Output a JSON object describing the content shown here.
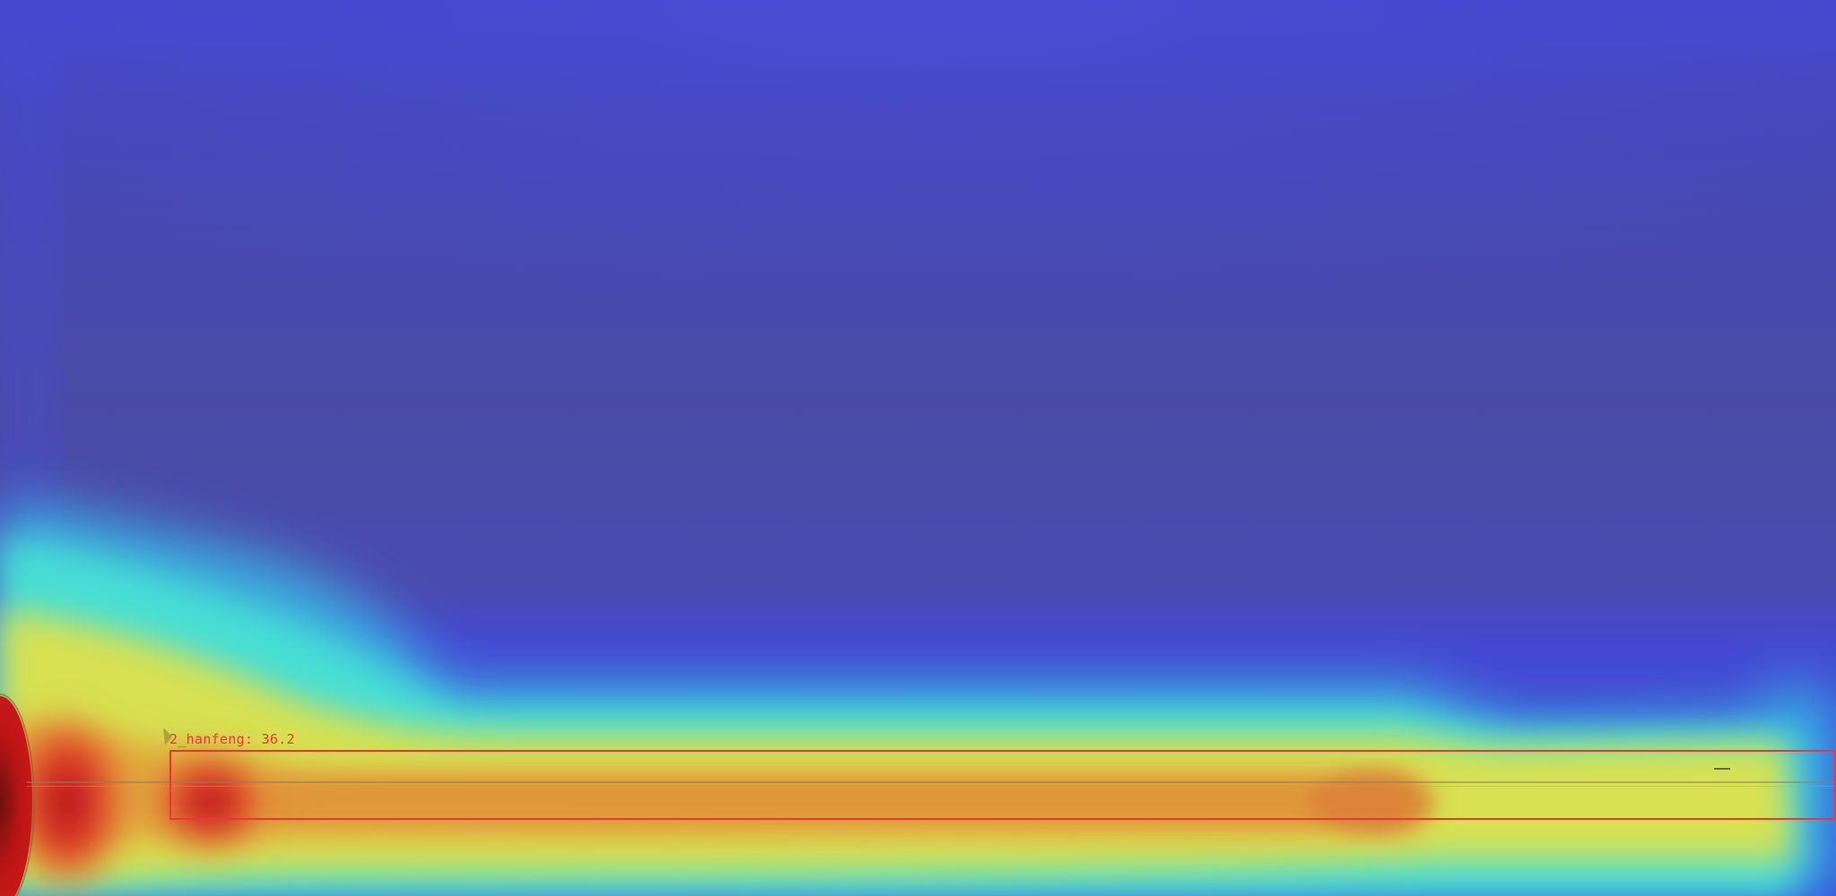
{
  "detection": {
    "label": "2_hanfeng: 36.2",
    "class_name": "2_hanfeng",
    "score": 36.2,
    "color": "#f0353a"
  },
  "colors": {
    "background_blue": "#3f46c8",
    "cold_blue": "#4a4fb0",
    "cyan": "#40e0d8",
    "yellow": "#e4e048",
    "orange": "#e0963a",
    "hot_red": "#c41818"
  }
}
